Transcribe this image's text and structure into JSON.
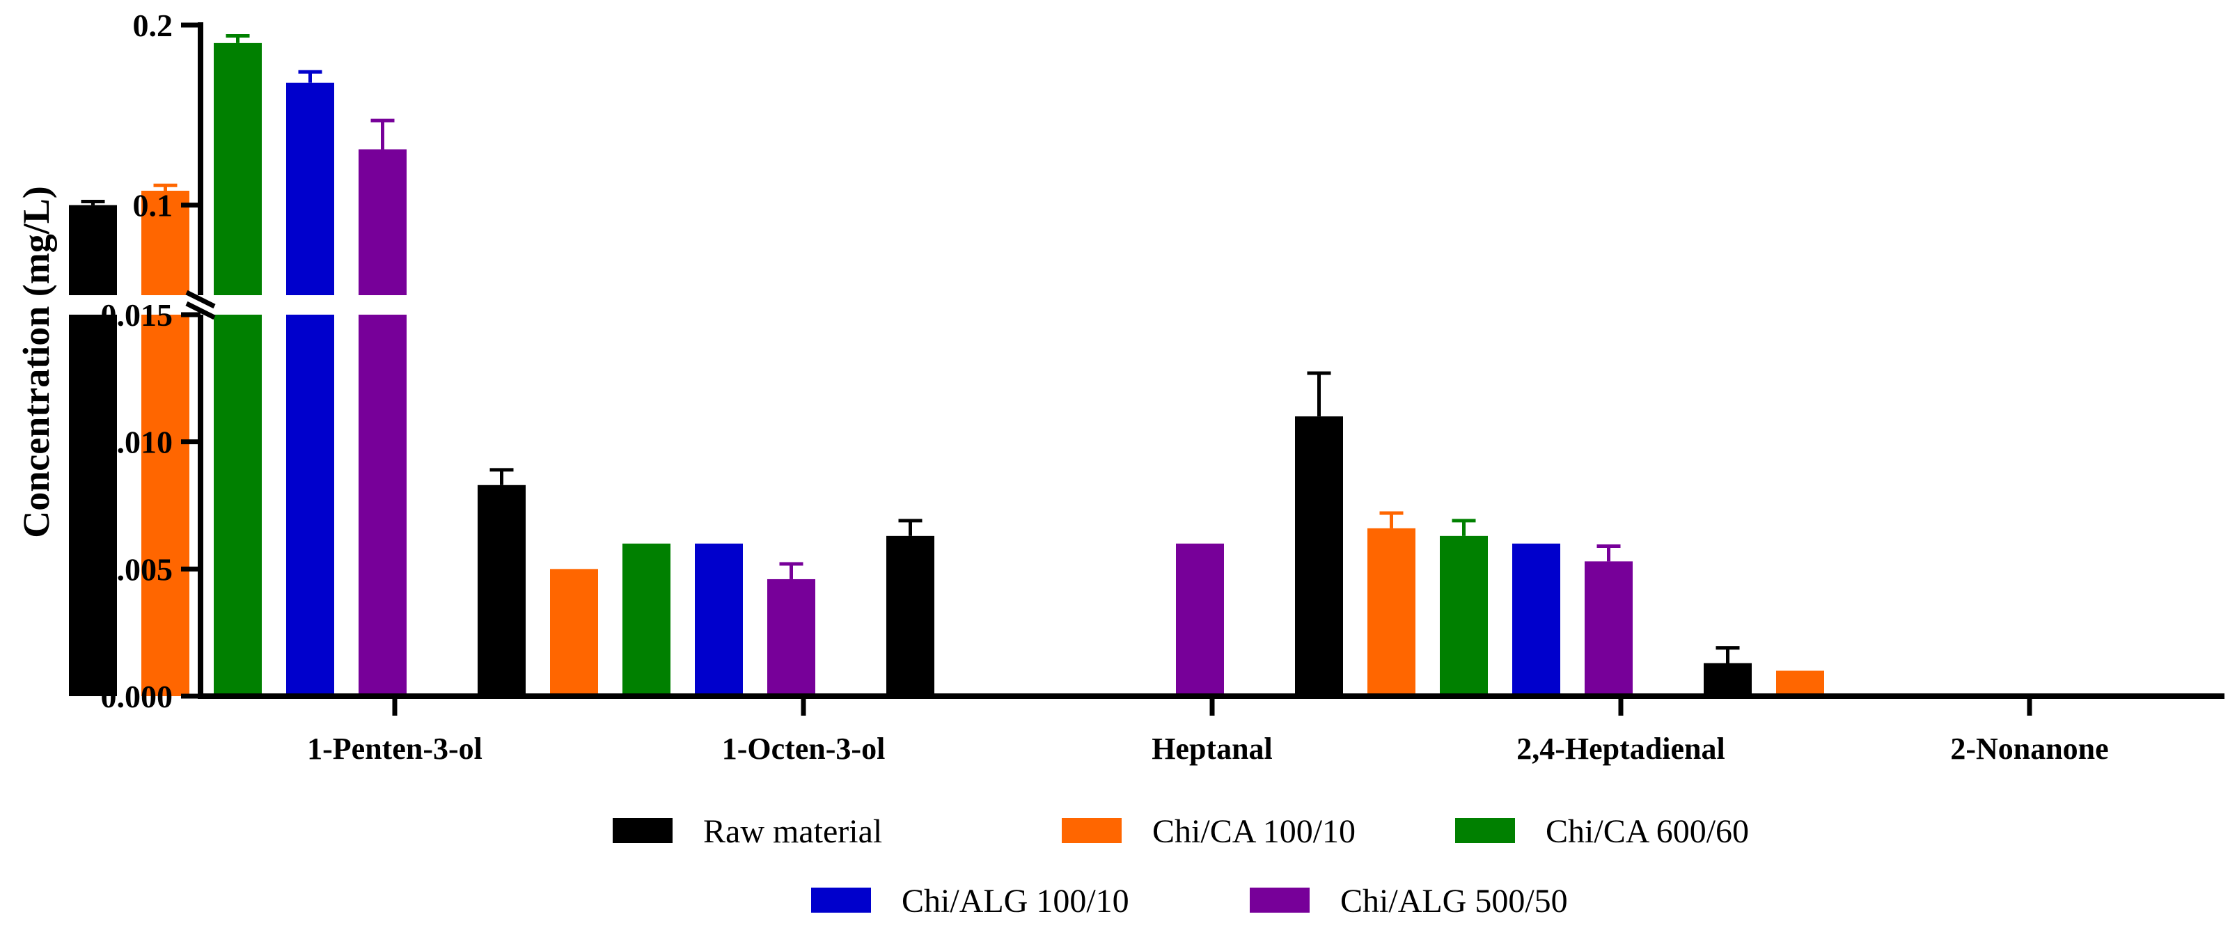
{
  "chart_data": {
    "type": "bar",
    "title": "",
    "xlabel": "",
    "ylabel": "Concentration (mg/L)",
    "y_axis_break": true,
    "ylim_lower": [
      0,
      0.015
    ],
    "ylim_upper": [
      0.05,
      0.2
    ],
    "yticks_lower": [
      "0.000",
      "0.005",
      "0.010",
      "0.015"
    ],
    "yticks_upper": [
      "0.1",
      "0.2"
    ],
    "categories": [
      "1-Penten-3-ol",
      "1-Octen-3-ol",
      "Heptanal",
      "2,4-Heptadienal",
      "2-Nonanone"
    ],
    "series": [
      {
        "name": "Raw material",
        "color": "#000000",
        "values": [
          0.1,
          0.0083,
          0.0063,
          0.011,
          0.0013
        ],
        "errors": [
          0.002,
          0.0006,
          0.0006,
          0.0017,
          0.0006
        ]
      },
      {
        "name": "Chi/CA 100/10",
        "color": "#ff6600",
        "values": [
          0.108,
          0.005,
          0,
          0.0066,
          0.001
        ],
        "errors": [
          0.003,
          0,
          0,
          0.0006,
          0
        ]
      },
      {
        "name": "Chi/CA 600/60",
        "color": "#008000",
        "values": [
          0.19,
          0.006,
          0,
          0.0063,
          0
        ],
        "errors": [
          0.004,
          0,
          0,
          0.0006,
          0
        ]
      },
      {
        "name": "Chi/ALG 100/10",
        "color": "#0000cc",
        "values": [
          0.168,
          0.006,
          0,
          0.006,
          0
        ],
        "errors": [
          0.006,
          0,
          0,
          0,
          0
        ]
      },
      {
        "name": "Chi/ALG 500/50",
        "color": "#770099",
        "values": [
          0.131,
          0.0046,
          0.006,
          0.0053,
          0
        ],
        "errors": [
          0.016,
          0.0006,
          0,
          0.0006,
          0
        ]
      }
    ],
    "legend_position": "bottom"
  }
}
